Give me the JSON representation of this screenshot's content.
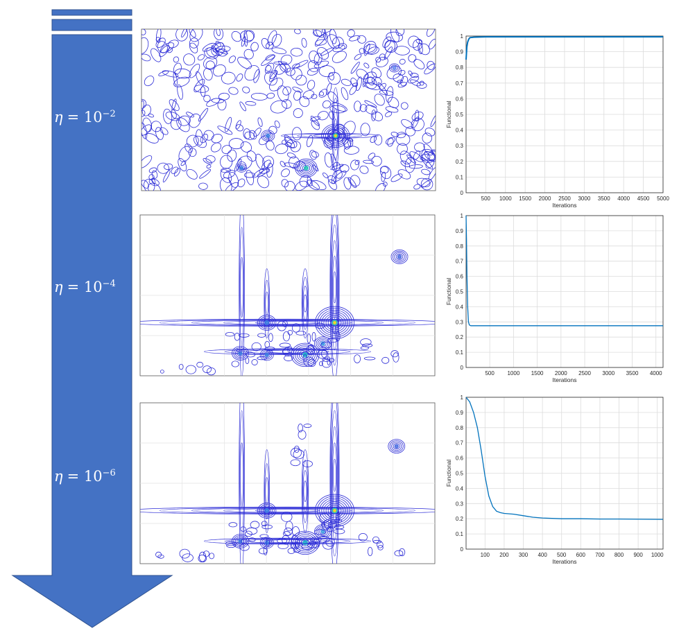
{
  "colors": {
    "arrow": "#4472c4",
    "contour": "#2b2bd6",
    "line": "#0072bd",
    "grid": "#dcdcdc",
    "axis": "#262626"
  },
  "eta_labels": [
    {
      "symbol": "η",
      "eq": "= 10",
      "exp": "−2"
    },
    {
      "symbol": "η",
      "eq": "= 10",
      "exp": "−4"
    },
    {
      "symbol": "η",
      "eq": "= 10",
      "exp": "−6"
    }
  ],
  "chart_data": [
    {
      "type": "line",
      "title": "",
      "xlabel": "Iterations",
      "ylabel": "Functional",
      "xlim": [
        1,
        5000
      ],
      "ylim": [
        0,
        1
      ],
      "xticks": [
        500,
        1000,
        1500,
        2000,
        2500,
        3000,
        3500,
        4000,
        4500,
        5000
      ],
      "yticks": [
        0,
        0.1,
        0.2,
        0.3,
        0.4,
        0.5,
        0.6,
        0.7,
        0.8,
        0.9,
        1
      ],
      "grid": true,
      "series": [
        {
          "x": [
            1,
            20,
            40,
            60,
            80,
            100,
            200,
            500,
            1000,
            2000,
            3000,
            4000,
            5000
          ],
          "y": [
            0.85,
            0.93,
            0.96,
            0.975,
            0.985,
            0.99,
            0.993,
            0.995,
            0.995,
            0.995,
            0.995,
            0.995,
            0.995
          ]
        }
      ]
    },
    {
      "type": "line",
      "title": "",
      "xlabel": "Iterations",
      "ylabel": "Functional",
      "xlim": [
        1,
        4150
      ],
      "ylim": [
        0,
        1
      ],
      "xticks": [
        500,
        1000,
        1500,
        2000,
        2500,
        3000,
        3500,
        4000
      ],
      "yticks": [
        0,
        0.1,
        0.2,
        0.3,
        0.4,
        0.5,
        0.6,
        0.7,
        0.8,
        0.9,
        1
      ],
      "grid": true,
      "series": [
        {
          "x": [
            1,
            10,
            20,
            35,
            50,
            70,
            100,
            200,
            500,
            1000,
            2000,
            3000,
            4150
          ],
          "y": [
            1,
            0.85,
            0.6,
            0.4,
            0.3,
            0.28,
            0.275,
            0.275,
            0.275,
            0.275,
            0.275,
            0.275,
            0.275
          ]
        }
      ]
    },
    {
      "type": "line",
      "title": "",
      "xlabel": "Iterations",
      "ylabel": "Functional",
      "xlim": [
        1,
        1030
      ],
      "ylim": [
        0,
        1
      ],
      "xticks": [
        100,
        200,
        300,
        400,
        500,
        600,
        700,
        800,
        900,
        1000
      ],
      "yticks": [
        0,
        0.1,
        0.2,
        0.3,
        0.4,
        0.5,
        0.6,
        0.7,
        0.8,
        0.9,
        1
      ],
      "grid": true,
      "series": [
        {
          "x": [
            1,
            20,
            40,
            60,
            80,
            100,
            120,
            140,
            160,
            180,
            200,
            250,
            300,
            350,
            400,
            500,
            600,
            700,
            800,
            900,
            1030
          ],
          "y": [
            1.0,
            0.97,
            0.9,
            0.8,
            0.65,
            0.48,
            0.35,
            0.28,
            0.25,
            0.24,
            0.235,
            0.23,
            0.22,
            0.21,
            0.205,
            0.2,
            0.2,
            0.198,
            0.198,
            0.197,
            0.196
          ]
        }
      ]
    }
  ]
}
